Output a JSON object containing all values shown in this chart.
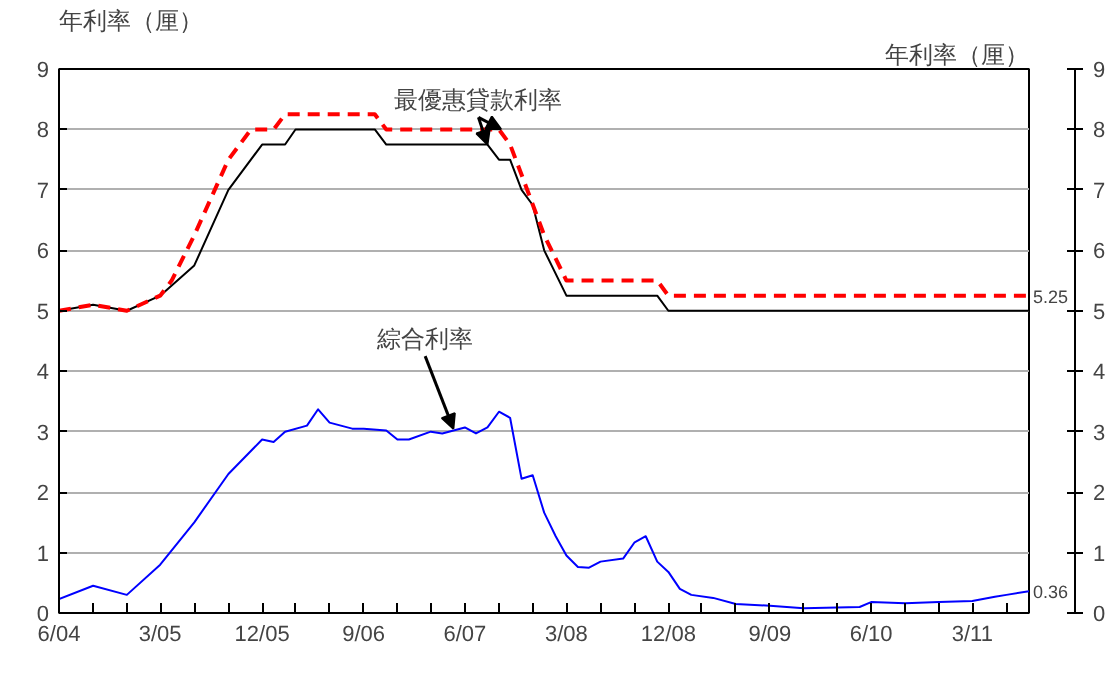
{
  "chart_data": {
    "type": "line",
    "ylabel": "年利率（厘）",
    "y2label": "年利率（厘）",
    "xlim": [
      "2004-06",
      "2011-08"
    ],
    "xticks": [
      {
        "value": "2004-06",
        "label": "6/04"
      },
      {
        "value": "2004-09",
        "label": null
      },
      {
        "value": "2004-12",
        "label": null
      },
      {
        "value": "2005-03",
        "label": "3/05"
      },
      {
        "value": "2005-06",
        "label": null
      },
      {
        "value": "2005-09",
        "label": null
      },
      {
        "value": "2005-12",
        "label": "12/05"
      },
      {
        "value": "2006-03",
        "label": null
      },
      {
        "value": "2006-06",
        "label": null
      },
      {
        "value": "2006-09",
        "label": "9/06"
      },
      {
        "value": "2006-12",
        "label": null
      },
      {
        "value": "2007-03",
        "label": null
      },
      {
        "value": "2007-06",
        "label": "6/07"
      },
      {
        "value": "2007-09",
        "label": null
      },
      {
        "value": "2007-12",
        "label": null
      },
      {
        "value": "2008-03",
        "label": "3/08"
      },
      {
        "value": "2008-06",
        "label": null
      },
      {
        "value": "2008-09",
        "label": null
      },
      {
        "value": "2008-12",
        "label": "12/08"
      },
      {
        "value": "2009-03",
        "label": null
      },
      {
        "value": "2009-06",
        "label": null
      },
      {
        "value": "2009-09",
        "label": "9/09"
      },
      {
        "value": "2009-12",
        "label": null
      },
      {
        "value": "2010-03",
        "label": null
      },
      {
        "value": "2010-06",
        "label": "6/10"
      },
      {
        "value": "2010-09",
        "label": null
      },
      {
        "value": "2010-12",
        "label": null
      },
      {
        "value": "2011-03",
        "label": "3/11"
      },
      {
        "value": "2011-06",
        "label": null
      }
    ],
    "ylim": [
      0,
      9
    ],
    "yticks": [
      0,
      1,
      2,
      3,
      4,
      5,
      6,
      7,
      8,
      9
    ],
    "y2lim": [
      0,
      9
    ],
    "y2ticks": [
      0,
      1,
      2,
      3,
      4,
      5,
      6,
      7,
      8,
      9
    ],
    "grid": "y",
    "marker": "none",
    "series": [
      {
        "color": "#000000",
        "line_style": "solid",
        "x": [
          "2004-06",
          "2004-09",
          "2004-12",
          "2005-03",
          "2005-06",
          "2005-09",
          "2005-12",
          "2006-02",
          "2006-03",
          "2006-10",
          "2006-11",
          "2007-08",
          "2007-09",
          "2007-10",
          "2007-11",
          "2007-12",
          "2008-01",
          "2008-03",
          "2008-11",
          "2008-12",
          "2011-08"
        ],
        "values": [
          5.0,
          5.1,
          5.0,
          5.25,
          5.75,
          7.0,
          7.75,
          7.75,
          8.0,
          8.0,
          7.75,
          7.75,
          7.5,
          7.5,
          7.0,
          6.75,
          6.0,
          5.25,
          5.25,
          5.0,
          5.0
        ]
      },
      {
        "color": "#ff0000",
        "line_style": "dashed",
        "x": [
          "2004-06",
          "2004-09",
          "2004-12",
          "2005-03",
          "2005-04",
          "2005-06",
          "2005-09",
          "2005-11",
          "2006-01",
          "2006-02",
          "2006-10",
          "2006-11",
          "2007-09",
          "2007-10",
          "2007-11",
          "2008-01",
          "2008-03",
          "2008-11",
          "2008-12",
          "2011-08"
        ],
        "values": [
          5.0,
          5.1,
          5.0,
          5.25,
          5.5,
          6.25,
          7.5,
          8.0,
          8.0,
          8.25,
          8.25,
          8.0,
          8.0,
          7.75,
          7.25,
          6.25,
          5.5,
          5.5,
          5.25,
          5.25
        ],
        "value_labels": [
          null,
          null,
          null,
          null,
          null,
          null,
          null,
          null,
          null,
          null,
          null,
          null,
          null,
          null,
          null,
          null,
          null,
          null,
          null,
          "5.25"
        ]
      },
      {
        "color": "#0000ff",
        "line_style": "solid",
        "x": [
          "2004-06",
          "2004-09",
          "2004-12",
          "2005-03",
          "2005-06",
          "2005-09",
          "2005-12",
          "2006-01",
          "2006-02",
          "2006-04",
          "2006-05",
          "2006-06",
          "2006-08",
          "2006-09",
          "2006-11",
          "2006-12",
          "2007-01",
          "2007-03",
          "2007-04",
          "2007-06",
          "2007-07",
          "2007-08",
          "2007-09",
          "2007-10",
          "2007-11",
          "2007-12",
          "2008-01",
          "2008-02",
          "2008-03",
          "2008-04",
          "2008-05",
          "2008-06",
          "2008-08",
          "2008-09",
          "2008-10",
          "2008-11",
          "2008-12",
          "2009-01",
          "2009-02",
          "2009-04",
          "2009-06",
          "2009-09",
          "2009-12",
          "2010-05",
          "2010-06",
          "2010-09",
          "2010-12",
          "2011-03",
          "2011-05",
          "2011-06",
          "2011-08"
        ],
        "values": [
          0.23,
          0.45,
          0.3,
          0.8,
          1.5,
          2.3,
          2.87,
          2.83,
          3.0,
          3.1,
          3.37,
          3.15,
          3.05,
          3.05,
          3.02,
          2.87,
          2.87,
          3.0,
          2.97,
          3.07,
          2.97,
          3.07,
          3.33,
          3.23,
          2.22,
          2.28,
          1.66,
          1.27,
          0.95,
          0.76,
          0.75,
          0.85,
          0.9,
          1.17,
          1.27,
          0.85,
          0.68,
          0.4,
          0.3,
          0.25,
          0.15,
          0.12,
          0.08,
          0.1,
          0.18,
          0.16,
          0.18,
          0.2,
          0.27,
          0.3,
          0.36
        ],
        "value_labels": [
          null,
          null,
          null,
          null,
          null,
          null,
          null,
          null,
          null,
          null,
          null,
          null,
          null,
          null,
          null,
          null,
          null,
          null,
          null,
          null,
          null,
          null,
          null,
          null,
          null,
          null,
          null,
          null,
          null,
          null,
          null,
          null,
          null,
          null,
          null,
          null,
          null,
          null,
          null,
          null,
          null,
          null,
          null,
          null,
          null,
          null,
          null,
          null,
          null,
          null,
          "0.36"
        ]
      }
    ],
    "annotations": [
      {
        "text": "最優惠貸款利率",
        "x": "2007-08",
        "y": 7.75
      },
      {
        "text": "綜合利率",
        "x": "2007-05",
        "y": 3.0
      }
    ]
  }
}
